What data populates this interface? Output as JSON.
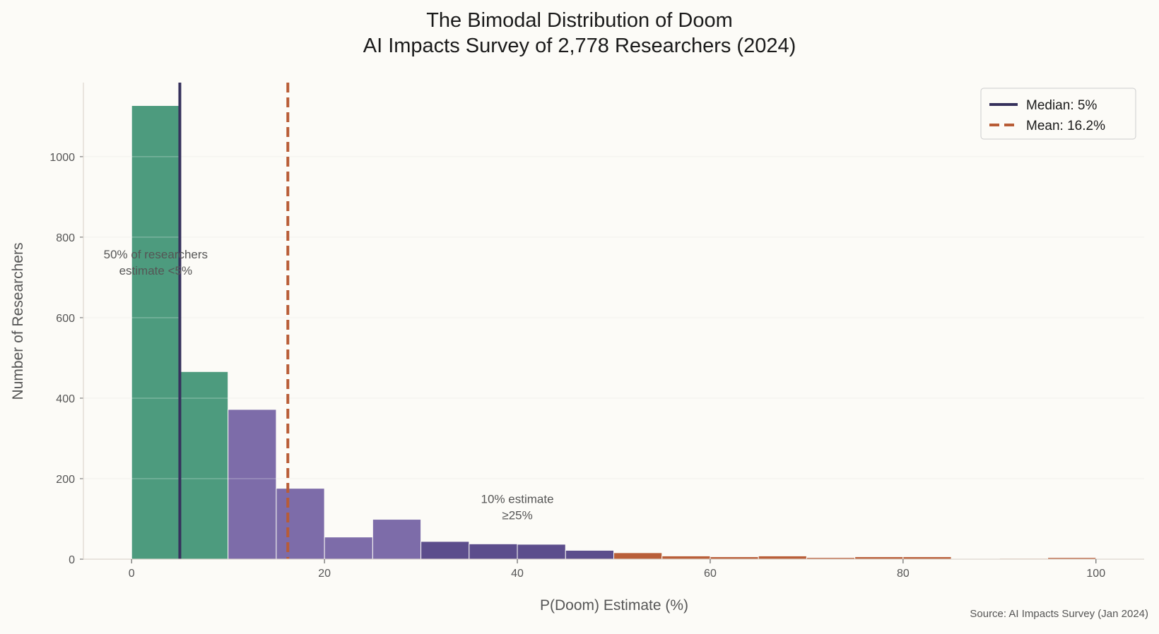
{
  "chart_data": {
    "type": "bar",
    "title": "The Bimodal Distribution of Doom",
    "subtitle": "AI Impacts Survey of 2,778 Researchers (2024)",
    "xlabel": "P(Doom) Estimate (%)",
    "ylabel": "Number of Researchers",
    "xlim": [
      -5,
      105
    ],
    "ylim": [
      0,
      1184
    ],
    "xticks": [
      0,
      20,
      40,
      60,
      80,
      100
    ],
    "yticks": [
      0,
      200,
      400,
      600,
      800,
      1000
    ],
    "grid": "horizontal",
    "bin_width": 5,
    "bin_starts": [
      0,
      5,
      10,
      15,
      20,
      25,
      30,
      35,
      40,
      45,
      50,
      55,
      60,
      65,
      70,
      75,
      80,
      85,
      90,
      95
    ],
    "values": [
      1127,
      466,
      372,
      176,
      55,
      99,
      44,
      38,
      37,
      22,
      16,
      8,
      6,
      8,
      4,
      6,
      6,
      0,
      2,
      4
    ],
    "bin_colors": [
      {
        "from": 0,
        "to": 10,
        "color": "#4a9a7c"
      },
      {
        "from": 10,
        "to": 30,
        "color": "#7b6aa8"
      },
      {
        "from": 30,
        "to": 50,
        "color": "#594a8a"
      },
      {
        "from": 50,
        "to": 100,
        "color": "#b85c36"
      }
    ],
    "reference_lines": [
      {
        "name": "Median: 5%",
        "x": 5,
        "color": "#36315c",
        "style": "solid"
      },
      {
        "name": "Mean: 16.2%",
        "x": 16.2,
        "color": "#b85c36",
        "style": "dashed"
      }
    ],
    "legend_placement": "top-right",
    "annotations": [
      {
        "lines": [
          "50% of researchers",
          "estimate <5%"
        ],
        "x": 2.5,
        "y": 730
      },
      {
        "lines": [
          "10% estimate",
          "≥25%"
        ],
        "x": 40,
        "y": 122
      }
    ],
    "source": "Source: AI Impacts Survey (Jan 2024)"
  }
}
